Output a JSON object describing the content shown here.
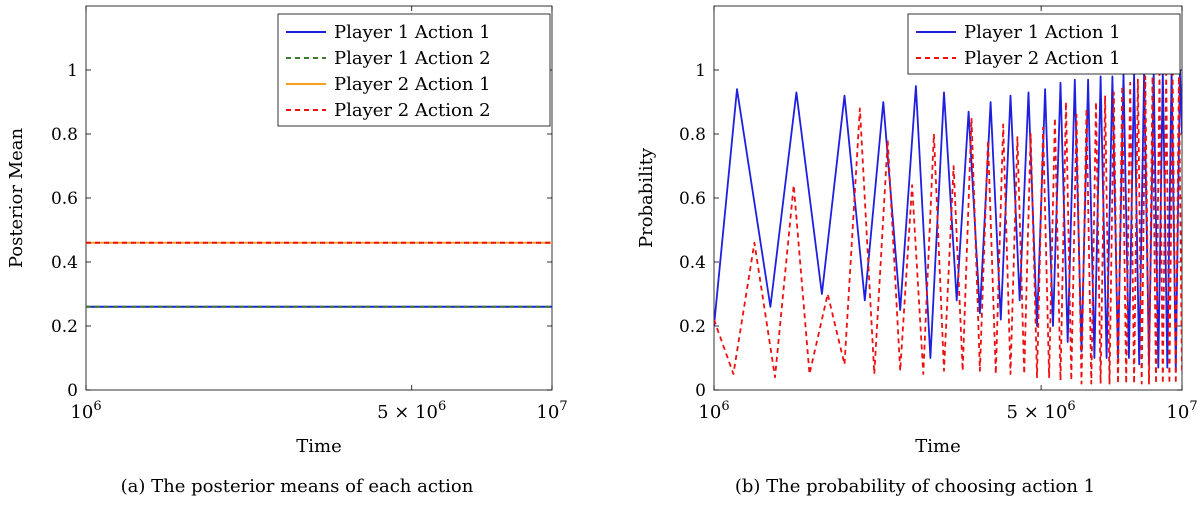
{
  "colors": {
    "p1a1": "#1f1fe0",
    "p1a2": "#3a7a2a",
    "p2a1": "#f5a020",
    "p2a2": "#ee1010",
    "axis": "#000000",
    "legend_border": "#000000"
  },
  "chart_data": [
    {
      "type": "line",
      "caption": "(a) The posterior means of each action",
      "xlabel": "Time",
      "ylabel": "Posterior Mean",
      "xlim": [
        "10^6",
        "10^7"
      ],
      "ylim": [
        0,
        1.2
      ],
      "x_ticks": [
        {
          "label_base": "10",
          "label_exp": "6",
          "value": 1000000
        },
        {
          "label_base": "5 × 10",
          "label_exp": "6",
          "value": 5000000
        },
        {
          "label_base": "10",
          "label_exp": "7",
          "value": 10000000
        }
      ],
      "y_ticks": [
        {
          "label": "0",
          "value": 0
        },
        {
          "label": "0.2",
          "value": 0.2
        },
        {
          "label": "0.4",
          "value": 0.4
        },
        {
          "label": "0.6",
          "value": 0.6
        },
        {
          "label": "0.8",
          "value": 0.8
        },
        {
          "label": "1",
          "value": 1
        }
      ],
      "legend_position": "top-right",
      "series": [
        {
          "name": "Player 1 Action 1",
          "style": "solid",
          "color_key": "p1a1",
          "x": [
            "10^6",
            "10^7"
          ],
          "values": [
            0.26,
            0.26
          ]
        },
        {
          "name": "Player 1 Action 2",
          "style": "dashed",
          "color_key": "p1a2",
          "x": [
            "10^6",
            "10^7"
          ],
          "values": [
            0.26,
            0.26
          ]
        },
        {
          "name": "Player 2 Action 1",
          "style": "solid",
          "color_key": "p2a1",
          "x": [
            "10^6",
            "10^7"
          ],
          "values": [
            0.46,
            0.46
          ]
        },
        {
          "name": "Player 2 Action 2",
          "style": "dashed",
          "color_key": "p2a2",
          "x": [
            "10^6",
            "10^7"
          ],
          "values": [
            0.46,
            0.46
          ]
        }
      ]
    },
    {
      "type": "line",
      "caption": "(b) The probability of choosing action 1",
      "xlabel": "Time",
      "ylabel": "Probability",
      "xlim": [
        "10^6",
        "10^7"
      ],
      "ylim": [
        0,
        1.2
      ],
      "x_ticks": [
        {
          "label_base": "10",
          "label_exp": "6",
          "value": 1000000
        },
        {
          "label_base": "5 × 10",
          "label_exp": "6",
          "value": 5000000
        },
        {
          "label_base": "10",
          "label_exp": "7",
          "value": 10000000
        }
      ],
      "y_ticks": [
        {
          "label": "0",
          "value": 0
        },
        {
          "label": "0.2",
          "value": 0.2
        },
        {
          "label": "0.4",
          "value": 0.4
        },
        {
          "label": "0.6",
          "value": 0.6
        },
        {
          "label": "0.8",
          "value": 0.8
        },
        {
          "label": "1",
          "value": 1
        }
      ],
      "legend_position": "top-right",
      "series": [
        {
          "name": "Player 1 Action 1",
          "style": "solid",
          "color_key": "p1a1",
          "x": [
            1.0,
            1.12,
            1.32,
            1.5,
            1.7,
            1.9,
            2.1,
            2.3,
            2.5,
            2.7,
            2.9,
            3.1,
            3.3,
            3.5,
            3.7,
            3.9,
            4.1,
            4.3,
            4.5,
            4.7,
            4.9,
            5.1,
            5.3,
            5.5,
            5.7,
            5.9,
            6.1,
            6.3,
            6.5,
            6.7,
            6.9,
            7.1,
            7.3,
            7.5,
            7.7,
            7.9,
            8.1,
            8.3,
            8.5,
            8.7,
            8.9,
            9.1,
            9.3,
            9.5,
            9.7,
            9.9,
            10.0
          ],
          "values": [
            0.2,
            0.94,
            0.26,
            0.93,
            0.3,
            0.92,
            0.28,
            0.9,
            0.25,
            0.95,
            0.1,
            0.93,
            0.28,
            0.87,
            0.24,
            0.9,
            0.22,
            0.92,
            0.28,
            0.93,
            0.2,
            0.94,
            0.2,
            0.96,
            0.15,
            0.97,
            0.12,
            0.97,
            0.1,
            0.98,
            0.1,
            0.98,
            0.1,
            0.99,
            0.1,
            0.99,
            0.08,
            0.99,
            0.08,
            0.99,
            0.07,
            1.0,
            0.07,
            1.0,
            0.06,
            1.0,
            0.8
          ]
        },
        {
          "name": "Player 2 Action 1",
          "style": "dashed",
          "color_key": "p2a2",
          "x": [
            1.0,
            1.1,
            1.22,
            1.35,
            1.48,
            1.6,
            1.75,
            1.9,
            2.05,
            2.2,
            2.35,
            2.5,
            2.65,
            2.8,
            2.95,
            3.1,
            3.25,
            3.4,
            3.55,
            3.7,
            3.85,
            4.0,
            4.15,
            4.3,
            4.45,
            4.6,
            4.75,
            4.9,
            5.05,
            5.2,
            5.35,
            5.5,
            5.65,
            5.8,
            5.95,
            6.1,
            6.25,
            6.4,
            6.55,
            6.7,
            6.85,
            7.0,
            7.15,
            7.3,
            7.45,
            7.6,
            7.75,
            7.9,
            8.05,
            8.2,
            8.35,
            8.5,
            8.65,
            8.8,
            8.95,
            9.1,
            9.25,
            9.4,
            9.55,
            9.7,
            9.85,
            10.0
          ],
          "values": [
            0.22,
            0.05,
            0.46,
            0.04,
            0.64,
            0.05,
            0.3,
            0.08,
            0.88,
            0.05,
            0.78,
            0.06,
            0.64,
            0.05,
            0.8,
            0.06,
            0.7,
            0.06,
            0.85,
            0.06,
            0.78,
            0.05,
            0.83,
            0.05,
            0.79,
            0.05,
            0.8,
            0.04,
            0.82,
            0.04,
            0.85,
            0.03,
            0.9,
            0.03,
            0.86,
            0.02,
            0.88,
            0.02,
            0.9,
            0.02,
            0.92,
            0.02,
            0.93,
            0.02,
            0.95,
            0.02,
            0.96,
            0.02,
            0.97,
            0.02,
            0.98,
            0.02,
            0.98,
            0.02,
            0.99,
            0.02,
            0.99,
            0.02,
            0.99,
            0.02,
            0.98,
            0.05
          ]
        }
      ]
    }
  ]
}
